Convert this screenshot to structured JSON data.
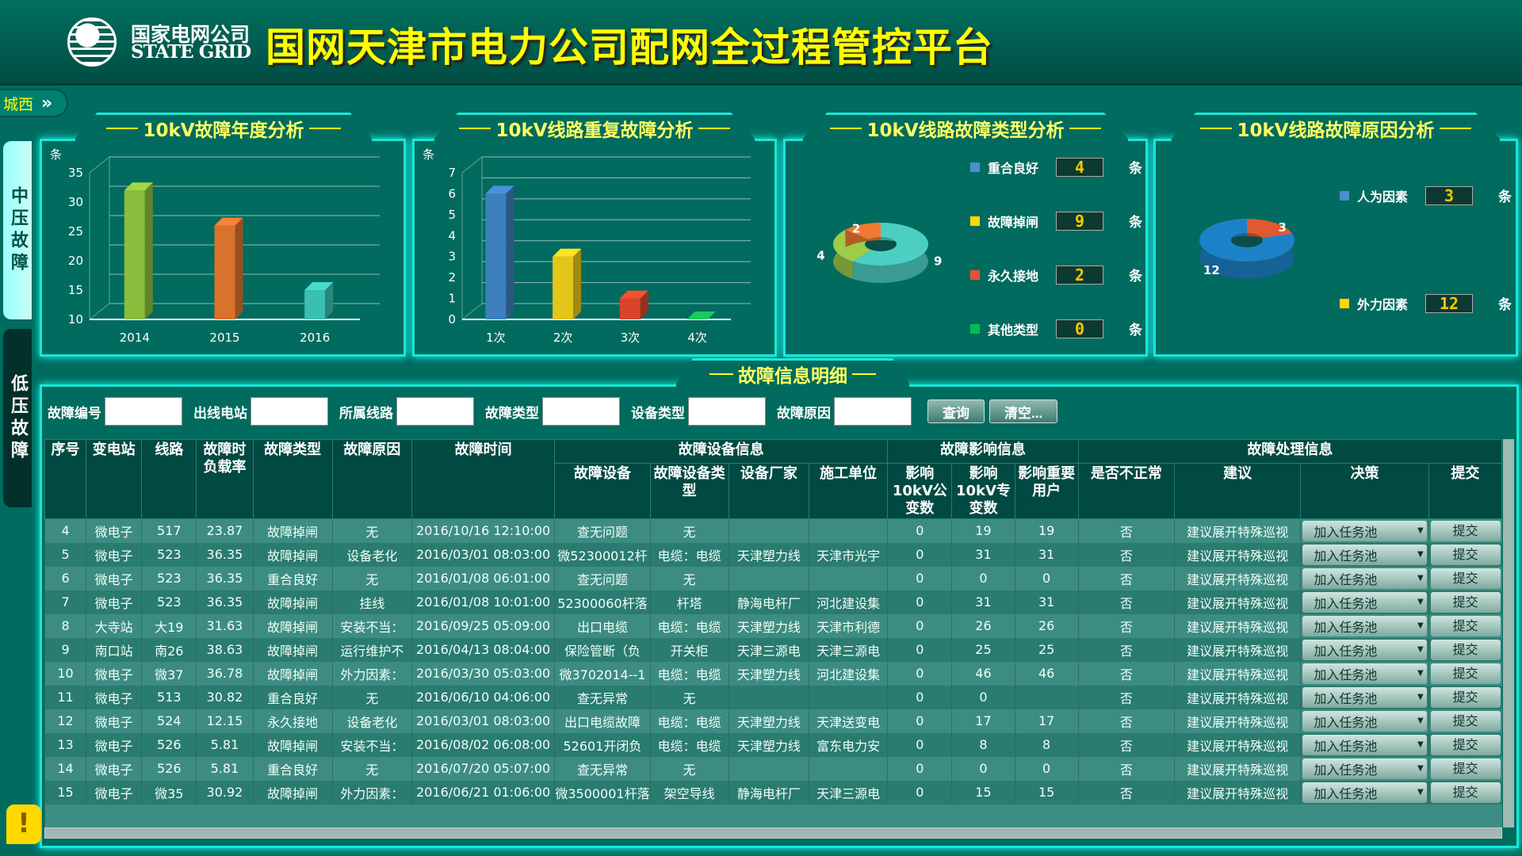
{
  "header": {
    "logo_cn": "国家电网公司",
    "logo_en": "STATE GRID",
    "title": "国网天津市电力公司配网全过程管控平台"
  },
  "region": {
    "label": "城西",
    "icon": "double-chevron-right-icon"
  },
  "sidebar": [
    {
      "label": "中压故障",
      "active": true
    },
    {
      "label": "低压故障",
      "active": false
    }
  ],
  "panels": {
    "p1_title": "10kV故障年度分析",
    "p2_title": "10kV线路重复故障分析",
    "p3_title": "10kV线路故障类型分析",
    "p4_title": "10kV线路故障原因分析"
  },
  "chart_data": [
    {
      "type": "bar",
      "title": "10kV故障年度分析",
      "ylabel": "条",
      "categories": [
        "2014",
        "2015",
        "2016"
      ],
      "values": [
        32,
        26,
        15
      ],
      "ylim": [
        10,
        35
      ],
      "yticks": [
        10,
        15,
        20,
        25,
        30,
        35
      ],
      "colors": [
        "#8bbd3c",
        "#d8722c",
        "#3bbfb2"
      ],
      "grid": true
    },
    {
      "type": "bar",
      "title": "10kV线路重复故障分析",
      "ylabel": "条",
      "categories": [
        "1次",
        "2次",
        "3次",
        "4次"
      ],
      "values": [
        6,
        3,
        1,
        0
      ],
      "ylim": [
        0,
        7
      ],
      "yticks": [
        0,
        1,
        2,
        3,
        4,
        5,
        6,
        7
      ],
      "colors": [
        "#3d7fbd",
        "#e4c51c",
        "#d8452b",
        "#18b050"
      ],
      "grid": true
    },
    {
      "type": "pie",
      "title": "10kV线路故障类型分析",
      "categories": [
        "重合良好",
        "故障掉闸",
        "永久接地",
        "其他类型"
      ],
      "values": [
        4,
        9,
        2,
        0
      ],
      "legend_colors": [
        "#4a8fd0",
        "#ffd800",
        "#e8503a",
        "#00c050"
      ],
      "slice_colors": [
        "#9ccc48",
        "#4ccfc2",
        "#f07a30",
        "#00c050"
      ],
      "unit": "条",
      "labels_shown": [
        "9",
        "4",
        "2"
      ]
    },
    {
      "type": "pie",
      "title": "10kV线路故障原因分析",
      "categories": [
        "人为因素",
        "外力因素"
      ],
      "values": [
        3,
        12
      ],
      "legend_colors": [
        "#4a8fd0",
        "#ffd800"
      ],
      "slice_colors": [
        "#e05a30",
        "#1c82c8"
      ],
      "unit": "条"
    }
  ],
  "detail": {
    "title": "故障信息明细",
    "filters": [
      {
        "label": "故障编号",
        "value": ""
      },
      {
        "label": "出线电站",
        "value": ""
      },
      {
        "label": "所属线路",
        "value": ""
      },
      {
        "label": "故障类型",
        "value": ""
      },
      {
        "label": "设备类型",
        "value": ""
      },
      {
        "label": "故障原因",
        "value": ""
      }
    ],
    "query_btn": "查询",
    "clear_btn": "清空...",
    "group_headers": [
      "故障设备信息",
      "故障影响信息",
      "故障处理信息"
    ],
    "columns": [
      "序号",
      "变电站",
      "线路",
      "故障时负载率",
      "故障类型",
      "故障原因",
      "故障时间",
      "故障设备",
      "故障设备类型",
      "设备厂家",
      "施工单位",
      "影响10kV公变数",
      "影响10kV专变数",
      "影响重要用户",
      "是否不正常",
      "建议",
      "决策",
      "提交"
    ],
    "decision_option": "加入任务池",
    "submit_label": "提交",
    "rows": [
      [
        "4",
        "微电子",
        "517",
        "23.87",
        "故障掉闸",
        "无",
        "2016/10/16 12:10:00",
        "查无问题",
        "无",
        "",
        "",
        "0",
        "19",
        "19",
        "否",
        "建议展开特殊巡视"
      ],
      [
        "5",
        "微电子",
        "523",
        "36.35",
        "故障掉闸",
        "设备老化",
        "2016/03/01 08:03:00",
        "微52300012杆",
        "电缆：电缆",
        "天津塑力线",
        "天津市光宇",
        "0",
        "31",
        "31",
        "否",
        "建议展开特殊巡视"
      ],
      [
        "6",
        "微电子",
        "523",
        "36.35",
        "重合良好",
        "无",
        "2016/01/08 06:01:00",
        "查无问题",
        "无",
        "",
        "",
        "0",
        "0",
        "0",
        "否",
        "建议展开特殊巡视"
      ],
      [
        "7",
        "微电子",
        "523",
        "36.35",
        "故障掉闸",
        "挂线",
        "2016/01/08 10:01:00",
        "52300060杆落",
        "杆塔",
        "静海电杆厂",
        "河北建设集",
        "0",
        "31",
        "31",
        "否",
        "建议展开特殊巡视"
      ],
      [
        "8",
        "大寺站",
        "大19",
        "31.63",
        "故障掉闸",
        "安装不当：",
        "2016/09/25 05:09:00",
        "出口电缆",
        "电缆：电缆",
        "天津塑力线",
        "天津市利德",
        "0",
        "26",
        "26",
        "否",
        "建议展开特殊巡视"
      ],
      [
        "9",
        "南口站",
        "南26",
        "38.63",
        "故障掉闸",
        "运行维护不",
        "2016/04/13 08:04:00",
        "保险管断（负",
        "开关柜",
        "天津三源电",
        "天津三源电",
        "0",
        "25",
        "25",
        "否",
        "建议展开特殊巡视"
      ],
      [
        "10",
        "微电子",
        "微37",
        "36.78",
        "故障掉闸",
        "外力因素：",
        "2016/03/30 05:03:00",
        "微3702014--1",
        "电缆：电缆",
        "天津塑力线",
        "河北建设集",
        "0",
        "46",
        "46",
        "否",
        "建议展开特殊巡视"
      ],
      [
        "11",
        "微电子",
        "513",
        "30.82",
        "重合良好",
        "无",
        "2016/06/10 04:06:00",
        "查无异常",
        "无",
        "",
        "",
        "0",
        "0",
        "",
        "否",
        "建议展开特殊巡视"
      ],
      [
        "12",
        "微电子",
        "524",
        "12.15",
        "永久接地",
        "设备老化",
        "2016/03/01 08:03:00",
        "出口电缆故障",
        "电缆：电缆",
        "天津塑力线",
        "天津送变电",
        "0",
        "17",
        "17",
        "否",
        "建议展开特殊巡视"
      ],
      [
        "13",
        "微电子",
        "526",
        "5.81",
        "故障掉闸",
        "安装不当：",
        "2016/08/02 06:08:00",
        "52601开闭负",
        "电缆：电缆",
        "天津塑力线",
        "富东电力安",
        "0",
        "8",
        "8",
        "否",
        "建议展开特殊巡视"
      ],
      [
        "14",
        "微电子",
        "526",
        "5.81",
        "重合良好",
        "无",
        "2016/07/20 05:07:00",
        "查无异常",
        "无",
        "",
        "",
        "0",
        "0",
        "0",
        "否",
        "建议展开特殊巡视"
      ],
      [
        "15",
        "微电子",
        "微35",
        "30.92",
        "故障掉闸",
        "外力因素：",
        "2016/06/21 01:06:00",
        "微3500001杆落",
        "架空导线",
        "静海电杆厂",
        "天津三源电",
        "0",
        "15",
        "15",
        "否",
        "建议展开特殊巡视"
      ]
    ]
  }
}
